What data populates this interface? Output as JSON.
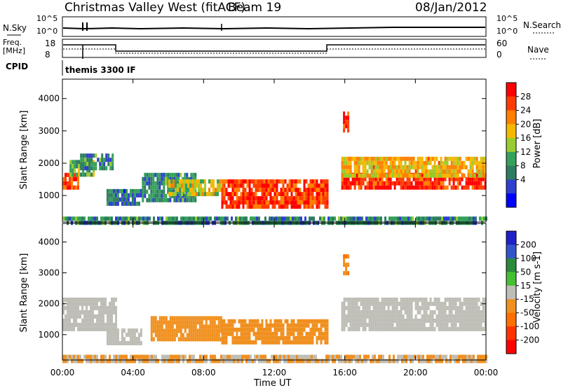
{
  "header": {
    "station": "Christmas Valley West (fitACF)",
    "beam": "Beam 19",
    "date": "08/Jan/2012"
  },
  "top_panels": {
    "nsky_label": "N.Sky",
    "nsky_ticks": [
      "10^5",
      "10^0"
    ],
    "nsearch_label": "N.Search",
    "nsearch_ticks": [
      "10^5",
      "10^0"
    ],
    "freq_label_line1": "Freq.",
    "freq_label_line2": "[MHz]",
    "freq_ticks": [
      "18",
      "8"
    ],
    "nave_label": "Nave",
    "nave_ticks": [
      "60",
      "0"
    ],
    "cpid_label": "CPID",
    "cpid_value": "themis 3300 IF"
  },
  "colors": {
    "power": [
      "#0000ff",
      "#2f3fd0",
      "#2e7d60",
      "#35a05a",
      "#98cc30",
      "#f5b800",
      "#ff8000",
      "#ff3c00",
      "#ff0000"
    ],
    "velocity": [
      "#2020c8",
      "#3355cc",
      "#2a8a3a",
      "#44c033",
      "#bebeb6",
      "#f09020",
      "#ff7000",
      "#ff3300",
      "#ff0000"
    ]
  },
  "chart_data": [
    {
      "type": "heatmap",
      "name": "power",
      "xlabel": "Time UT",
      "ylabel": "Slant Range [km]",
      "x_ticks": [
        "00:00",
        "04:00",
        "08:00",
        "12:00",
        "16:00",
        "20:00",
        "00:00"
      ],
      "xlim": [
        0,
        24
      ],
      "y_ticks": [
        "1000",
        "2000",
        "3000",
        "4000"
      ],
      "ylim": [
        180,
        4600
      ],
      "colorbar_label": "Power [dB]",
      "colorbar_ticks": [
        "4",
        "8",
        "12",
        "16",
        "20",
        "24",
        "28"
      ],
      "colorbar_range": [
        0,
        32
      ],
      "regions": [
        {
          "t0": 0.0,
          "t1": 0.9,
          "r0": 1200,
          "r1": 1700,
          "v": 26
        },
        {
          "t0": 0.4,
          "t1": 1.8,
          "r0": 1600,
          "r1": 2100,
          "v": 14
        },
        {
          "t0": 1.0,
          "t1": 2.8,
          "r0": 1800,
          "r1": 2300,
          "v": 10
        },
        {
          "t0": 2.5,
          "t1": 4.5,
          "r0": 700,
          "r1": 1200,
          "v": 8
        },
        {
          "t0": 4.5,
          "t1": 7.5,
          "r0": 900,
          "r1": 1700,
          "v": 10
        },
        {
          "t0": 6.0,
          "t1": 9.0,
          "r0": 1000,
          "r1": 1500,
          "v": 18
        },
        {
          "t0": 9.0,
          "t1": 15.0,
          "r0": 700,
          "r1": 1500,
          "v": 27
        },
        {
          "t0": 15.8,
          "t1": 24.0,
          "r0": 1200,
          "r1": 1700,
          "v": 28
        },
        {
          "t0": 15.8,
          "t1": 24.0,
          "r0": 1600,
          "r1": 2200,
          "v": 20
        },
        {
          "t0": 15.9,
          "t1": 16.2,
          "r0": 3000,
          "r1": 3600,
          "v": 28
        },
        {
          "t0": 0.0,
          "t1": 24.0,
          "r0": 200,
          "r1": 350,
          "v": 10
        }
      ]
    },
    {
      "type": "heatmap",
      "name": "velocity",
      "xlabel": "Time UT",
      "ylabel": "Slant Range [km]",
      "x_ticks": [
        "00:00",
        "04:00",
        "08:00",
        "12:00",
        "16:00",
        "20:00",
        "00:00"
      ],
      "xlim": [
        0,
        24
      ],
      "y_ticks": [
        "1000",
        "2000",
        "3000",
        "4000"
      ],
      "ylim": [
        180,
        4600
      ],
      "colorbar_label": "Velocity [m s-1]",
      "colorbar_ticks": [
        "200",
        "100",
        "50",
        "15",
        "-15",
        "-50",
        "-100",
        "-200"
      ],
      "colorbar_range": [
        -250,
        250
      ],
      "regions": [
        {
          "t0": 0.0,
          "t1": 3.0,
          "r0": 1200,
          "r1": 2200,
          "v": 0
        },
        {
          "t0": 2.5,
          "t1": 4.5,
          "r0": 700,
          "r1": 1200,
          "v": 0
        },
        {
          "t0": 5.0,
          "t1": 9.0,
          "r0": 900,
          "r1": 1600,
          "v": -60
        },
        {
          "t0": 9.0,
          "t1": 15.0,
          "r0": 700,
          "r1": 1500,
          "v": -60
        },
        {
          "t0": 15.8,
          "t1": 24.0,
          "r0": 1200,
          "r1": 2200,
          "v": 0
        },
        {
          "t0": 15.9,
          "t1": 16.2,
          "r0": 3000,
          "r1": 3600,
          "v": -80
        },
        {
          "t0": 0.0,
          "t1": 24.0,
          "r0": 200,
          "r1": 350,
          "v": -30
        }
      ]
    }
  ],
  "footer": {
    "time_label": "Time UT"
  }
}
